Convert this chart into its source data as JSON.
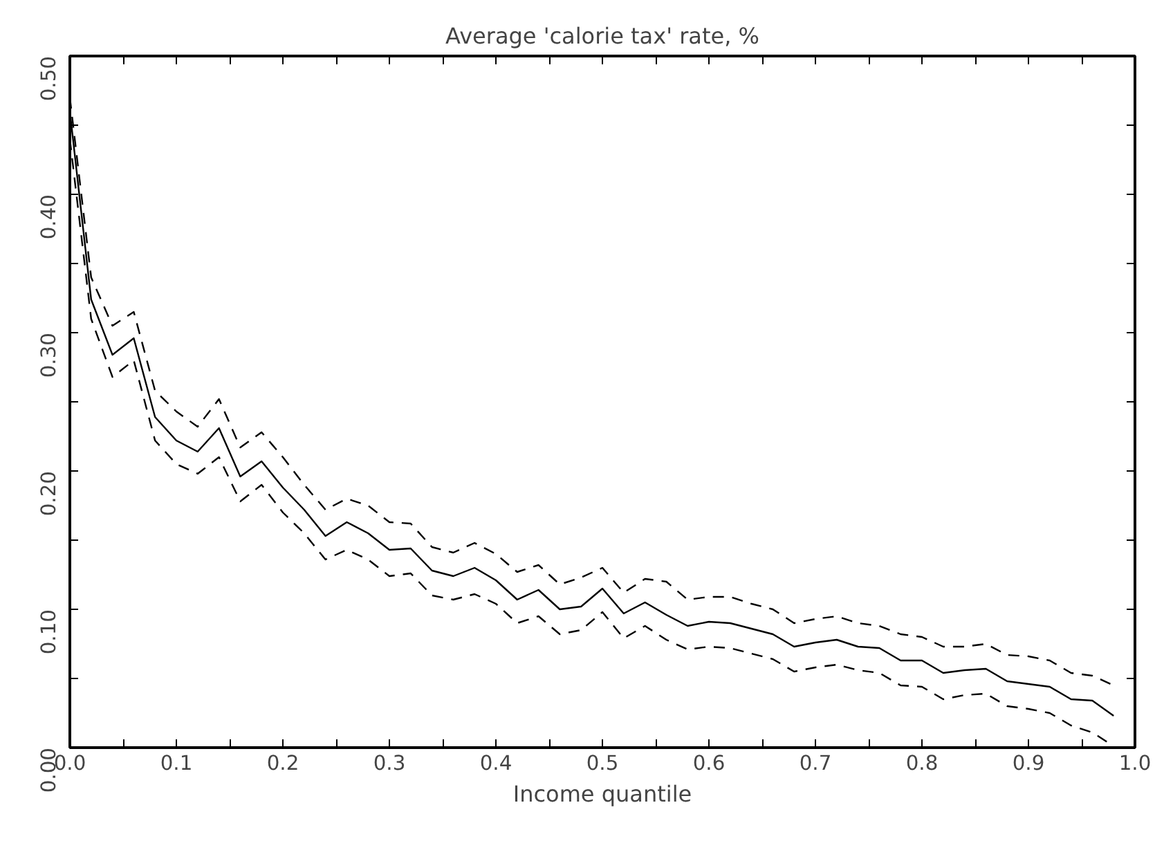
{
  "chart_data": {
    "type": "line",
    "title": "Average 'calorie tax' rate, %",
    "xlabel": "Income quantile",
    "x": [
      0.0,
      0.02,
      0.04,
      0.06,
      0.08,
      0.1,
      0.12,
      0.14,
      0.16,
      0.18,
      0.2,
      0.22,
      0.24,
      0.26,
      0.28,
      0.3,
      0.32,
      0.34,
      0.36,
      0.38,
      0.4,
      0.42,
      0.44,
      0.46,
      0.48,
      0.5,
      0.52,
      0.54,
      0.56,
      0.58,
      0.6,
      0.62,
      0.64,
      0.66,
      0.68,
      0.7,
      0.72,
      0.74,
      0.76,
      0.78,
      0.8,
      0.82,
      0.84,
      0.86,
      0.88,
      0.9,
      0.92,
      0.94,
      0.96,
      0.98
    ],
    "series": [
      {
        "color": "#000000",
        "line_style": "solid",
        "values": [
          0.46,
          0.324,
          0.284,
          0.296,
          0.239,
          0.222,
          0.214,
          0.231,
          0.196,
          0.207,
          0.188,
          0.172,
          0.153,
          0.163,
          0.155,
          0.143,
          0.144,
          0.128,
          0.124,
          0.13,
          0.121,
          0.107,
          0.114,
          0.1,
          0.102,
          0.115,
          0.097,
          0.105,
          0.096,
          0.088,
          0.091,
          0.09,
          0.086,
          0.082,
          0.073,
          0.076,
          0.078,
          0.073,
          0.072,
          0.063,
          0.063,
          0.054,
          0.056,
          0.057,
          0.048,
          0.046,
          0.044,
          0.035,
          0.034,
          0.023
        ]
      },
      {
        "color": "#000000",
        "line_style": "dashed",
        "values": [
          0.47,
          0.34,
          0.305,
          0.315,
          0.258,
          0.243,
          0.232,
          0.252,
          0.217,
          0.228,
          0.21,
          0.19,
          0.172,
          0.18,
          0.175,
          0.163,
          0.162,
          0.145,
          0.141,
          0.148,
          0.14,
          0.127,
          0.132,
          0.118,
          0.123,
          0.13,
          0.112,
          0.122,
          0.12,
          0.107,
          0.109,
          0.109,
          0.104,
          0.1,
          0.09,
          0.093,
          0.095,
          0.09,
          0.088,
          0.082,
          0.08,
          0.073,
          0.073,
          0.075,
          0.067,
          0.066,
          0.063,
          0.054,
          0.052,
          0.045
        ]
      },
      {
        "color": "#000000",
        "line_style": "dashed",
        "values": [
          0.44,
          0.31,
          0.268,
          0.28,
          0.222,
          0.205,
          0.198,
          0.21,
          0.178,
          0.19,
          0.17,
          0.155,
          0.136,
          0.143,
          0.136,
          0.124,
          0.126,
          0.11,
          0.107,
          0.111,
          0.104,
          0.09,
          0.095,
          0.082,
          0.085,
          0.098,
          0.079,
          0.088,
          0.078,
          0.071,
          0.073,
          0.072,
          0.068,
          0.064,
          0.055,
          0.058,
          0.06,
          0.056,
          0.054,
          0.045,
          0.044,
          0.035,
          0.038,
          0.039,
          0.03,
          0.028,
          0.025,
          0.016,
          0.011,
          0.001
        ]
      }
    ],
    "xlim": [
      0,
      1
    ],
    "ylim": [
      0,
      0.5
    ],
    "xticks": [
      {
        "value": 0,
        "label": "0.0"
      },
      {
        "value": 0.05,
        "label": null
      },
      {
        "value": 0.1,
        "label": "0.1"
      },
      {
        "value": 0.15,
        "label": null
      },
      {
        "value": 0.2,
        "label": "0.2"
      },
      {
        "value": 0.25,
        "label": null
      },
      {
        "value": 0.3,
        "label": "0.3"
      },
      {
        "value": 0.35,
        "label": null
      },
      {
        "value": 0.4,
        "label": "0.4"
      },
      {
        "value": 0.45,
        "label": null
      },
      {
        "value": 0.5,
        "label": "0.5"
      },
      {
        "value": 0.55,
        "label": null
      },
      {
        "value": 0.6,
        "label": "0.6"
      },
      {
        "value": 0.65,
        "label": null
      },
      {
        "value": 0.7,
        "label": "0.7"
      },
      {
        "value": 0.75,
        "label": null
      },
      {
        "value": 0.8,
        "label": "0.8"
      },
      {
        "value": 0.85,
        "label": null
      },
      {
        "value": 0.9,
        "label": "0.9"
      },
      {
        "value": 0.95,
        "label": null
      },
      {
        "value": 1,
        "label": "1.0"
      }
    ],
    "yticks": [
      {
        "value": 0,
        "label": "0.00"
      },
      {
        "value": 0.05,
        "label": null
      },
      {
        "value": 0.1,
        "label": "0.10"
      },
      {
        "value": 0.15,
        "label": null
      },
      {
        "value": 0.2,
        "label": "0.20"
      },
      {
        "value": 0.25,
        "label": null
      },
      {
        "value": 0.3,
        "label": "0.30"
      },
      {
        "value": 0.35,
        "label": null
      },
      {
        "value": 0.4,
        "label": "0.40"
      },
      {
        "value": 0.45,
        "label": null
      },
      {
        "value": 0.5,
        "label": "0.50"
      }
    ],
    "grid": false
  }
}
